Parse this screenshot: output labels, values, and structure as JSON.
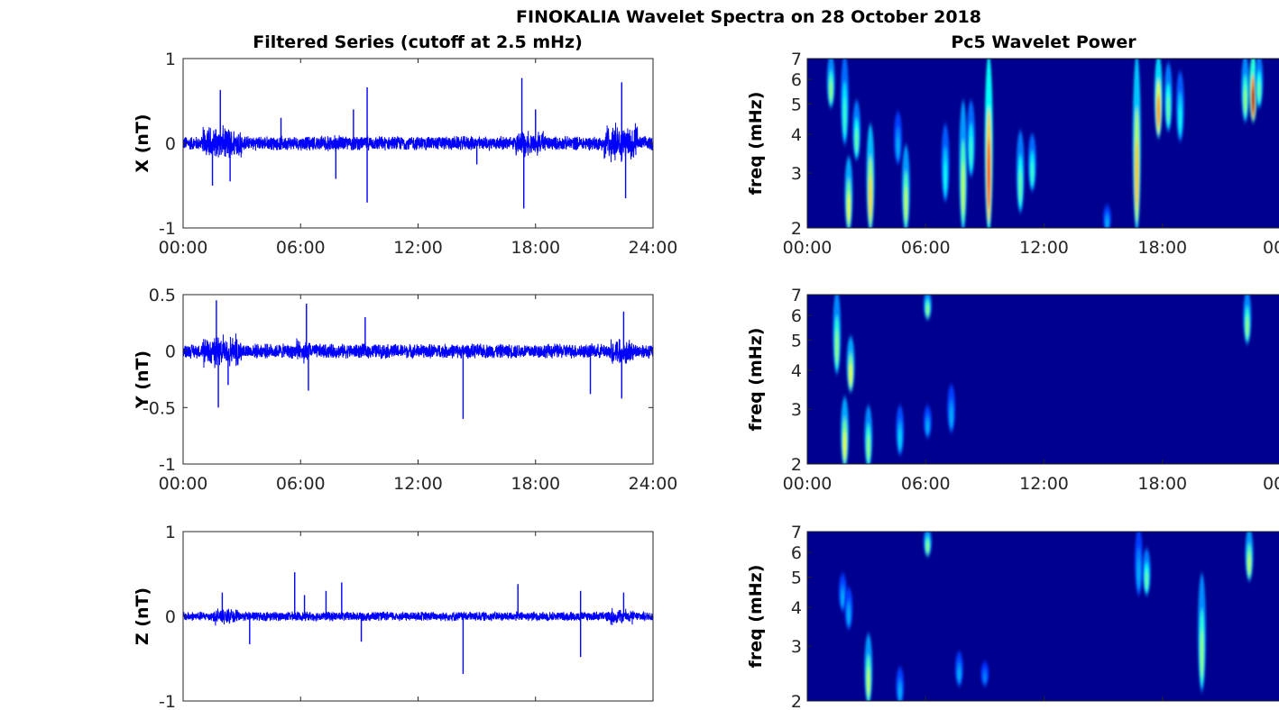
{
  "chart_data": {
    "title": "FINOKALIA Wavelet Spectra on 28 October 2018",
    "colors": {
      "series": "#0000ff",
      "background_power": "#00008f"
    },
    "left_column": {
      "title": "Filtered Series (cutoff at 2.5 mHz)",
      "type": "line",
      "x_ticks": [
        "00:00",
        "06:00",
        "12:00",
        "18:00",
        "24:00"
      ],
      "xlim_hours": [
        0,
        24
      ],
      "panels": [
        {
          "ylabel": "X (nT)",
          "ylim": [
            -1,
            1
          ],
          "y_ticks": [
            "-1",
            "0",
            "1"
          ],
          "show_x_ticks": true,
          "noise_base": 0.09,
          "bursts": [
            [
              1.0,
              3.0,
              0.25
            ],
            [
              6.5,
              8.0,
              0.12
            ],
            [
              17.0,
              18.5,
              0.2
            ],
            [
              21.5,
              23.2,
              0.3
            ]
          ],
          "spikes": [
            [
              1.5,
              -0.5
            ],
            [
              1.9,
              0.63
            ],
            [
              2.4,
              -0.45
            ],
            [
              5.0,
              0.3
            ],
            [
              7.8,
              -0.42
            ],
            [
              8.7,
              0.4
            ],
            [
              9.4,
              0.66
            ],
            [
              9.4,
              -0.7
            ],
            [
              15.0,
              -0.25
            ],
            [
              17.3,
              0.77
            ],
            [
              17.4,
              -0.77
            ],
            [
              18.0,
              0.4
            ],
            [
              22.4,
              0.72
            ],
            [
              22.6,
              -0.65
            ]
          ]
        },
        {
          "ylabel": "Y (nT)",
          "ylim": [
            -1,
            0.5
          ],
          "y_ticks": [
            "-1",
            "-0.5",
            "0",
            "0.5"
          ],
          "show_x_ticks": true,
          "noise_base": 0.07,
          "bursts": [
            [
              1.0,
              3.0,
              0.18
            ],
            [
              5.5,
              6.5,
              0.12
            ],
            [
              21.8,
              23.0,
              0.15
            ]
          ],
          "spikes": [
            [
              1.7,
              0.45
            ],
            [
              1.8,
              -0.5
            ],
            [
              2.3,
              -0.3
            ],
            [
              6.3,
              0.42
            ],
            [
              6.4,
              -0.35
            ],
            [
              9.3,
              0.3
            ],
            [
              14.3,
              -0.6
            ],
            [
              20.8,
              -0.38
            ],
            [
              22.5,
              0.35
            ],
            [
              22.4,
              -0.42
            ]
          ]
        },
        {
          "ylabel": "Z (nT)",
          "ylim": [
            -1,
            1
          ],
          "y_ticks": [
            "-1",
            "0",
            "1"
          ],
          "show_x_ticks": false,
          "noise_base": 0.06,
          "bursts": [
            [
              1.5,
              2.8,
              0.12
            ],
            [
              21.8,
              23.0,
              0.12
            ]
          ],
          "spikes": [
            [
              2.0,
              0.28
            ],
            [
              3.4,
              -0.33
            ],
            [
              5.7,
              0.52
            ],
            [
              6.2,
              0.25
            ],
            [
              7.3,
              0.3
            ],
            [
              8.1,
              0.4
            ],
            [
              9.1,
              -0.3
            ],
            [
              14.3,
              -0.68
            ],
            [
              17.1,
              0.38
            ],
            [
              20.3,
              -0.48
            ],
            [
              20.3,
              0.3
            ],
            [
              22.5,
              0.28
            ]
          ]
        }
      ]
    },
    "right_column": {
      "title": "Pc5 Wavelet Power",
      "type": "heatmap",
      "x_ticks": [
        "00:00",
        "06:00",
        "12:00",
        "18:00",
        "00"
      ],
      "xlim_hours": [
        0,
        24
      ],
      "ylabel": "freq (mHz)",
      "ylim_mHz": [
        2,
        7
      ],
      "y_scale": "log",
      "y_ticks": [
        "2",
        "3",
        "4",
        "5",
        "6",
        "7"
      ],
      "panels": [
        {
          "show_x_ticks": true,
          "blobs": [
            [
              1.2,
              5.0,
              7.0,
              0.45
            ],
            [
              1.9,
              3.8,
              7.0,
              0.35
            ],
            [
              2.1,
              2.0,
              3.3,
              0.55
            ],
            [
              2.5,
              3.4,
              5.0,
              0.4
            ],
            [
              3.2,
              2.0,
              4.2,
              0.62
            ],
            [
              4.6,
              3.3,
              4.6,
              0.2
            ],
            [
              5.0,
              2.0,
              3.6,
              0.5
            ],
            [
              7.0,
              2.5,
              4.2,
              0.3
            ],
            [
              7.9,
              2.0,
              5.0,
              0.5
            ],
            [
              8.3,
              3.0,
              5.0,
              0.35
            ],
            [
              9.2,
              2.0,
              7.0,
              0.85
            ],
            [
              10.8,
              2.3,
              4.0,
              0.4
            ],
            [
              11.4,
              2.7,
              3.9,
              0.35
            ],
            [
              15.2,
              2.0,
              2.3,
              0.2
            ],
            [
              16.7,
              2.0,
              7.0,
              0.65
            ],
            [
              17.8,
              4.0,
              7.0,
              0.72
            ],
            [
              18.3,
              4.2,
              6.6,
              0.4
            ],
            [
              18.9,
              3.9,
              6.2,
              0.3
            ],
            [
              22.2,
              4.5,
              7.0,
              0.45
            ],
            [
              22.6,
              4.5,
              7.0,
              0.95
            ],
            [
              22.9,
              5.0,
              7.0,
              0.4
            ]
          ]
        },
        {
          "show_x_ticks": true,
          "blobs": [
            [
              1.5,
              4.0,
              7.0,
              0.45
            ],
            [
              1.9,
              2.0,
              3.2,
              0.55
            ],
            [
              2.2,
              3.5,
              5.0,
              0.55
            ],
            [
              3.1,
              2.0,
              3.0,
              0.45
            ],
            [
              4.7,
              2.2,
              3.0,
              0.25
            ],
            [
              6.1,
              6.0,
              7.0,
              0.45
            ],
            [
              6.1,
              2.5,
              3.0,
              0.2
            ],
            [
              7.3,
              2.6,
              3.5,
              0.2
            ],
            [
              22.3,
              5.0,
              7.0,
              0.45
            ]
          ]
        },
        {
          "show_x_ticks": false,
          "blobs": [
            [
              1.8,
              4.0,
              5.0,
              0.2
            ],
            [
              2.1,
              3.5,
              4.5,
              0.2
            ],
            [
              3.1,
              2.0,
              3.2,
              0.5
            ],
            [
              4.7,
              2.0,
              2.5,
              0.2
            ],
            [
              6.1,
              6.0,
              7.0,
              0.45
            ],
            [
              7.7,
              2.3,
              2.8,
              0.2
            ],
            [
              9.0,
              2.3,
              2.6,
              0.15
            ],
            [
              16.8,
              4.5,
              7.0,
              0.2
            ],
            [
              17.2,
              4.5,
              6.0,
              0.4
            ],
            [
              20.0,
              2.2,
              5.0,
              0.45
            ],
            [
              22.4,
              5.0,
              7.0,
              0.5
            ]
          ]
        }
      ]
    }
  }
}
